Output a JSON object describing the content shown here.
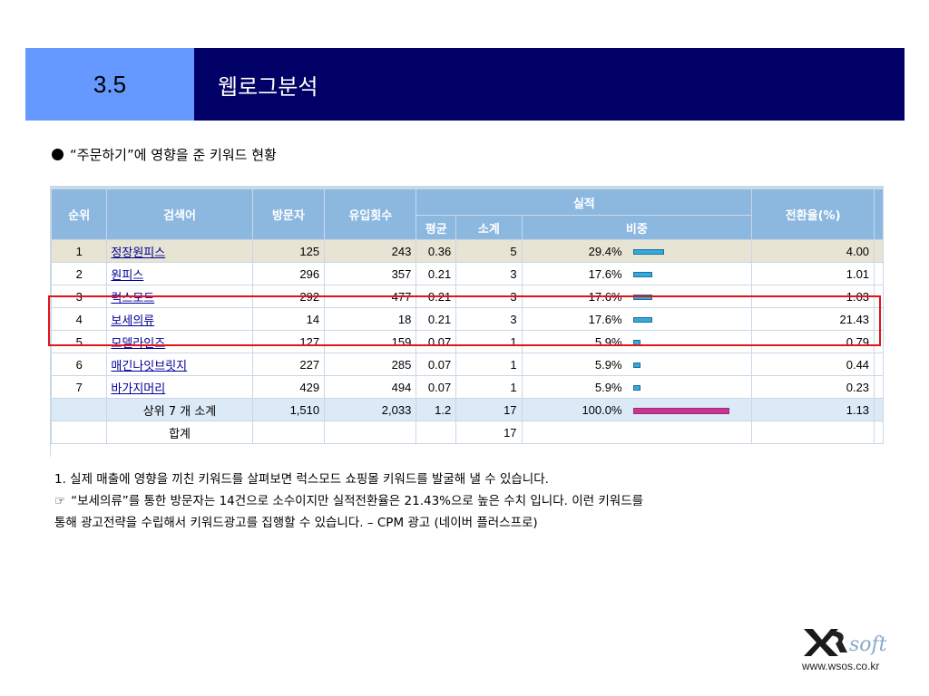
{
  "header": {
    "section_number": "3.5",
    "title": "웹로그분석"
  },
  "subtitle": "“주문하기”에 영향을 준 키워드 현황",
  "table": {
    "headers": {
      "rank": "순위",
      "keyword": "검색어",
      "visitors": "방문자",
      "inflow": "유입횟수",
      "performance": "실적",
      "avg": "평균",
      "subtotal": "소계",
      "share": "비중",
      "conversion": "전환율(%)"
    },
    "rows": [
      {
        "rank": "1",
        "keyword": "정장원피스",
        "visitors": "125",
        "inflow": "243",
        "avg": "0.36",
        "subtotal": "5",
        "share": "29.4%",
        "share_value": 29.4,
        "conversion": "4.00"
      },
      {
        "rank": "2",
        "keyword": "원피스",
        "visitors": "296",
        "inflow": "357",
        "avg": "0.21",
        "subtotal": "3",
        "share": "17.6%",
        "share_value": 17.6,
        "conversion": "1.01"
      },
      {
        "rank": "3",
        "keyword": "럭스모드",
        "visitors": "292",
        "inflow": "477",
        "avg": "0.21",
        "subtotal": "3",
        "share": "17.6%",
        "share_value": 17.6,
        "conversion": "1.03"
      },
      {
        "rank": "4",
        "keyword": "보세의류",
        "visitors": "14",
        "inflow": "18",
        "avg": "0.21",
        "subtotal": "3",
        "share": "17.6%",
        "share_value": 17.6,
        "conversion": "21.43"
      },
      {
        "rank": "5",
        "keyword": "모델라인즈",
        "visitors": "127",
        "inflow": "159",
        "avg": "0.07",
        "subtotal": "1",
        "share": "5.9%",
        "share_value": 5.9,
        "conversion": "0.79"
      },
      {
        "rank": "6",
        "keyword": "매긴나잇브릿지",
        "visitors": "227",
        "inflow": "285",
        "avg": "0.07",
        "subtotal": "1",
        "share": "5.9%",
        "share_value": 5.9,
        "conversion": "0.44"
      },
      {
        "rank": "7",
        "keyword": "바가지머리",
        "visitors": "429",
        "inflow": "494",
        "avg": "0.07",
        "subtotal": "1",
        "share": "5.9%",
        "share_value": 5.9,
        "conversion": "0.23"
      }
    ],
    "subtotal_row": {
      "label": "상위 7 개 소계",
      "visitors": "1,510",
      "inflow": "2,033",
      "avg": "1.2",
      "subtotal": "17",
      "share": "100.0%",
      "share_value": 100,
      "conversion": "1.13"
    },
    "total_row": {
      "label": "합계",
      "subtotal": "17"
    }
  },
  "notes": {
    "line1": "1. 실제 매출에 영향을 끼친 키워드를 살펴보면 럭스모드 쇼핑몰 키워드를 발굴해 낼 수 있습니다.",
    "hand_icon": "☞",
    "line2": "“보세의류”를 통한 방문자는 14건으로 소수이지만 실적전환율은 21.43%으로 높은 수치 입니다. 이런 키워드를",
    "line3": "통해 광고전략을 수립해서 키워드광고를 집행할 수 있습니다. – CPM 광고 (네이버 플러스프로)"
  },
  "logo": {
    "brand_text": "soft",
    "website": "www.wsos.co.kr"
  },
  "colors": {
    "header_left": "#6699ff",
    "header_right": "#000066",
    "table_header": "#8cb8e0",
    "bar_normal": "#33aadd",
    "bar_total": "#cc3399",
    "highlight": "#e0141a"
  }
}
